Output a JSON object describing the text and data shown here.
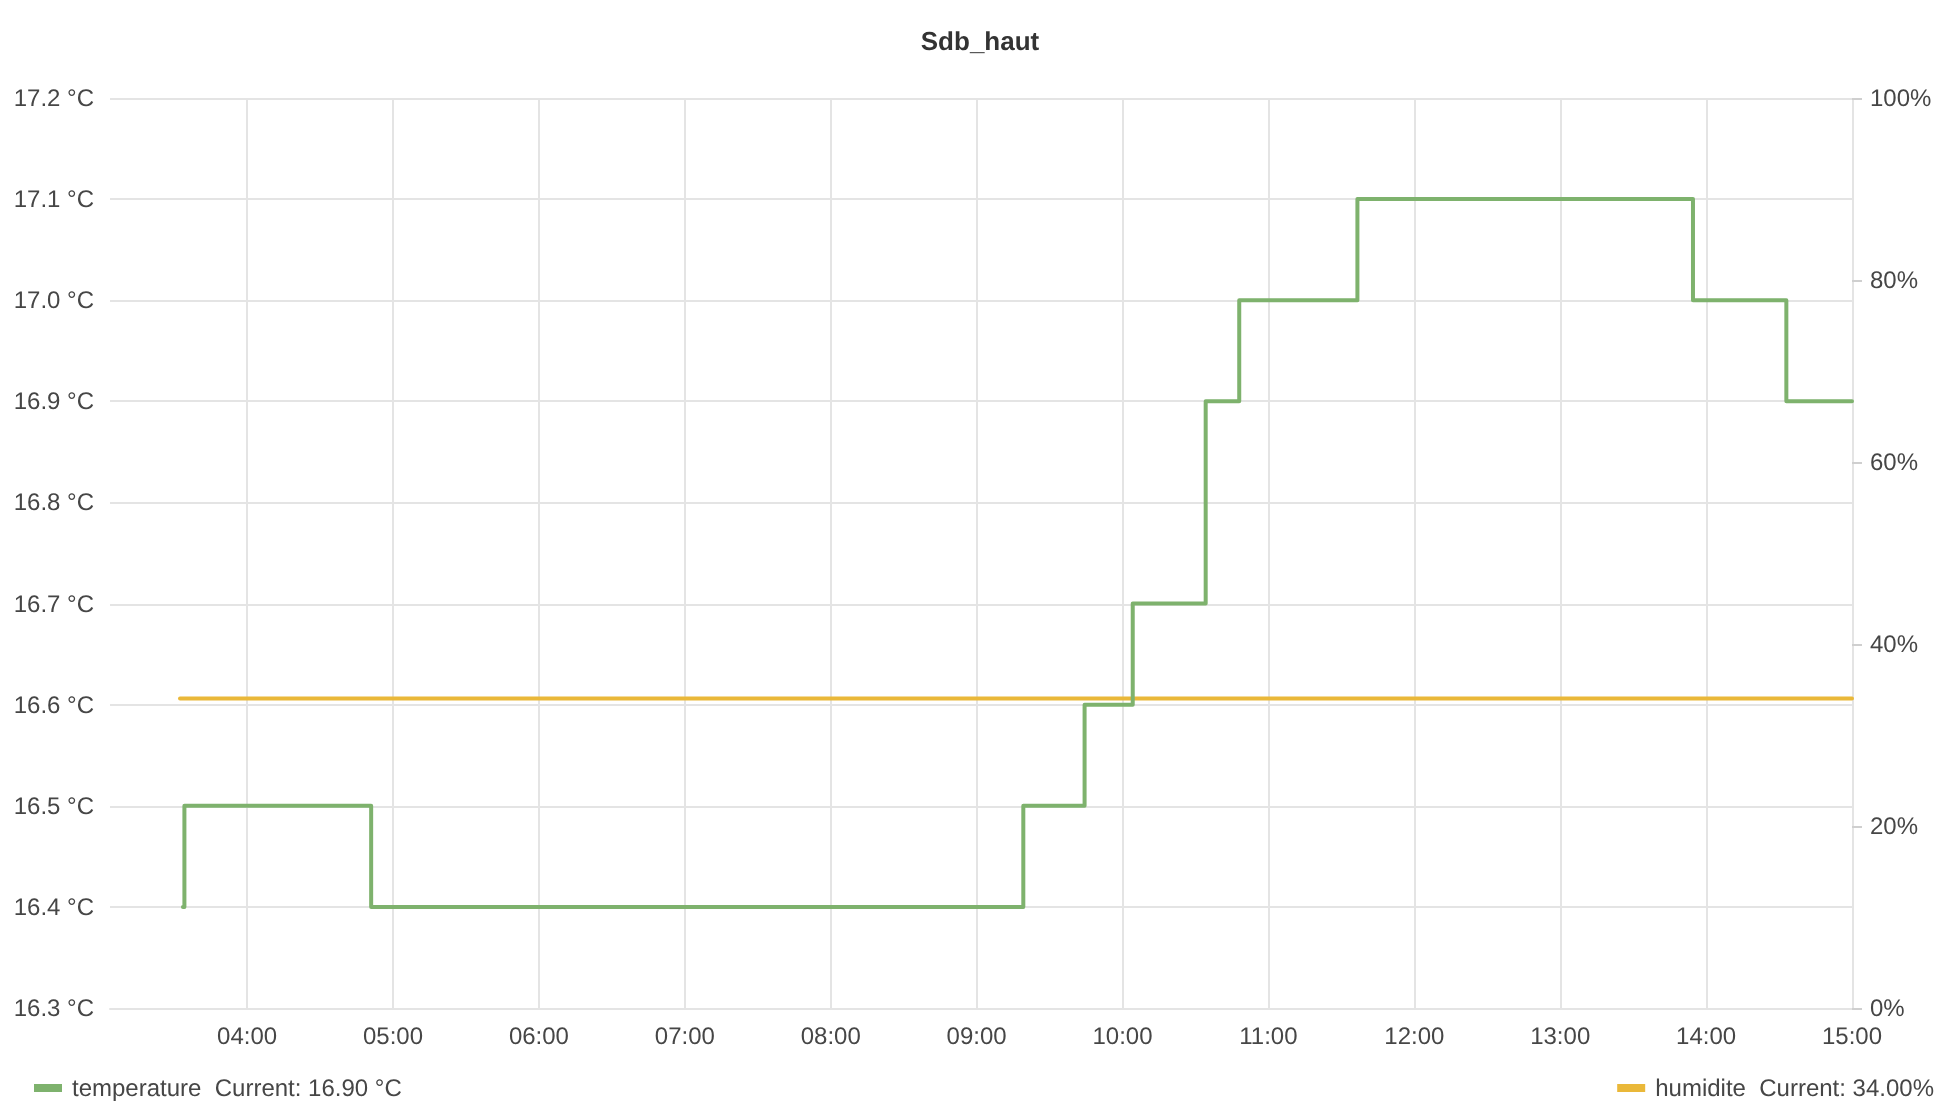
{
  "chart_data": {
    "type": "step",
    "title": "Sdb_haut",
    "series": [
      {
        "name": "temperature",
        "color": "#7eb26d",
        "x": [
          3.56,
          3.57,
          4.85,
          9.32,
          9.74,
          10.07,
          10.57,
          10.8,
          11.61,
          13.91,
          14.55,
          15.0
        ],
        "values": [
          16.4,
          16.5,
          16.4,
          16.5,
          16.6,
          16.7,
          16.9,
          17.0,
          17.1,
          17.0,
          16.9,
          16.9
        ]
      },
      {
        "name": "humidite",
        "color": "#eab839",
        "axis": "y2",
        "x": [
          3.54,
          15.0
        ],
        "values": [
          34,
          34
        ]
      }
    ],
    "xlim": [
      3.06,
      15
    ],
    "xticks": [
      {
        "value": 4,
        "label": "04:00"
      },
      {
        "value": 5,
        "label": "05:00"
      },
      {
        "value": 6,
        "label": "06:00"
      },
      {
        "value": 7,
        "label": "07:00"
      },
      {
        "value": 8,
        "label": "08:00"
      },
      {
        "value": 9,
        "label": "09:00"
      },
      {
        "value": 10,
        "label": "10:00"
      },
      {
        "value": 11,
        "label": "11:00"
      },
      {
        "value": 12,
        "label": "12:00"
      },
      {
        "value": 13,
        "label": "13:00"
      },
      {
        "value": 14,
        "label": "14:00"
      },
      {
        "value": 15,
        "label": "15:00"
      }
    ],
    "ylim": [
      16.3,
      17.2
    ],
    "yticks": [
      {
        "value": 16.3,
        "label": "16.3 °C"
      },
      {
        "value": 16.4,
        "label": "16.4 °C"
      },
      {
        "value": 16.5,
        "label": "16.5 °C"
      },
      {
        "value": 16.6,
        "label": "16.6 °C"
      },
      {
        "value": 16.7,
        "label": "16.7 °C"
      },
      {
        "value": 16.8,
        "label": "16.8 °C"
      },
      {
        "value": 16.9,
        "label": "16.9 °C"
      },
      {
        "value": 17.0,
        "label": "17.0 °C"
      },
      {
        "value": 17.1,
        "label": "17.1 °C"
      },
      {
        "value": 17.2,
        "label": "17.2 °C"
      }
    ],
    "y2lim": [
      0,
      100
    ],
    "y2ticks": [
      {
        "value": 0,
        "label": "0%"
      },
      {
        "value": 20,
        "label": "20%"
      },
      {
        "value": 40,
        "label": "40%"
      },
      {
        "value": 60,
        "label": "60%"
      },
      {
        "value": 80,
        "label": "80%"
      },
      {
        "value": 100,
        "label": "100%"
      }
    ],
    "annotations": [
      "Current: 16.90 °C",
      "Current: 34.00%"
    ],
    "grid": true,
    "legend": "bottom",
    "marker": "none"
  }
}
